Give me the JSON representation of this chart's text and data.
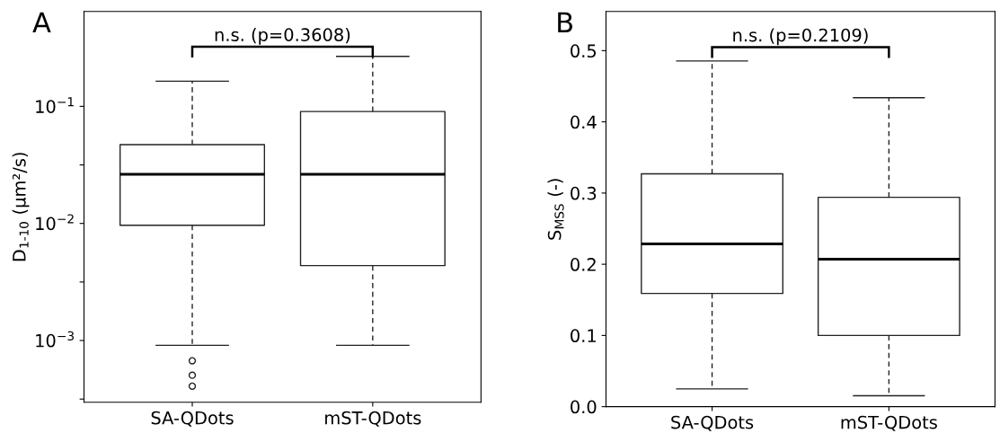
{
  "chart_data": [
    {
      "type": "box",
      "categories": [
        "SA-QDots",
        "mST-QDots"
      ],
      "ylabel": "D$_{1-10}$ (μm²/s)",
      "log": true,
      "ylim": [
        0.000297,
        0.646
      ],
      "yticks": [
        {
          "value": 0.1,
          "label": "10$^{−1}$"
        },
        {
          "value": 0.0316,
          "label": null
        },
        {
          "value": 0.01,
          "label": "10$^{−2}$"
        },
        {
          "value": 0.00316,
          "label": null
        },
        {
          "value": 0.001,
          "label": "10$^{−3}$"
        },
        {
          "value": 0.000316,
          "label": null
        }
      ],
      "boxes": [
        {
          "low": 0.00091,
          "q1": 0.00964,
          "median": 0.0263,
          "q3": 0.0471,
          "high": 0.164,
          "outliers": [
            0.000671,
            0.000505,
            0.000407
          ]
        },
        {
          "low": 0.00091,
          "q1": 0.00436,
          "median": 0.0263,
          "q3": 0.0903,
          "high": 0.267
        }
      ],
      "annotations": [
        "A",
        "n.s. (p=0.3608)"
      ],
      "grid": false
    },
    {
      "type": "box",
      "categories": [
        "SA-QDots",
        "mST-QDots"
      ],
      "ylabel": "S$_{MSS}$ (-)",
      "ylim": [
        0,
        0.555
      ],
      "yticks": [
        {
          "value": 0,
          "label": "0.0"
        },
        0.1,
        0.2,
        0.3,
        0.4,
        0.5
      ],
      "boxes": [
        {
          "low": 0.025,
          "q1": 0.159,
          "median": 0.2285,
          "q3": 0.327,
          "high": 0.4855
        },
        {
          "low": 0.0154,
          "q1": 0.1,
          "median": 0.207,
          "q3": 0.294,
          "high": 0.434
        }
      ],
      "annotations": [
        "B",
        "n.s. (p=0.2109)"
      ],
      "grid": false
    }
  ]
}
